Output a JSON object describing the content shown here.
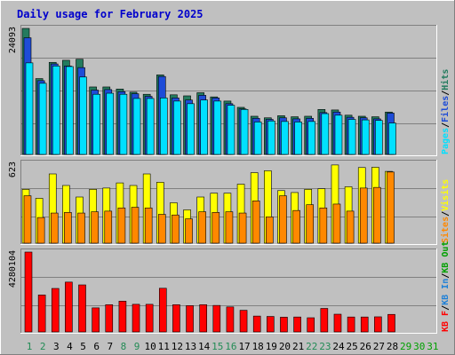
{
  "title": "Daily usage for February 2025",
  "colors": {
    "page_bg": "#c0c0c0",
    "title": "#0000cc",
    "hits": "#237b5e",
    "files": "#1e4cd7",
    "pages": "#00e0ff",
    "visits": "#ffff00",
    "sites": "#ff8800",
    "kb_f": "#ff0000",
    "kb_in": "#1e80d7",
    "kb_out": "#00a000",
    "weekend_label": "#228b55",
    "weekday_label": "#000000",
    "future_label": "#00a000"
  },
  "chart_data": [
    {
      "type": "bar",
      "panel": "top",
      "ytick_label": "24093",
      "ylim": [
        0,
        24093
      ],
      "grid": true,
      "categories": [
        "1",
        "2",
        "3",
        "4",
        "5",
        "6",
        "7",
        "8",
        "9",
        "10",
        "11",
        "12",
        "13",
        "14",
        "15",
        "16",
        "17",
        "18",
        "19",
        "20",
        "21",
        "22",
        "23",
        "24",
        "25",
        "26",
        "27",
        "28",
        "29",
        "30",
        "31"
      ],
      "legend": {
        "position": "right",
        "entries": [
          {
            "label": "Pages",
            "color_key": "pages"
          },
          {
            "label": "Files",
            "color_key": "files"
          },
          {
            "label": "Hits",
            "color_key": "hits"
          }
        ],
        "separator": "/"
      },
      "series": [
        {
          "name": "Hits",
          "color_key": "hits",
          "values": [
            24093,
            14500,
            17600,
            18000,
            18200,
            12900,
            12900,
            12500,
            11900,
            11500,
            15200,
            11400,
            11200,
            11800,
            11000,
            10200,
            9000,
            7300,
            7000,
            7400,
            7200,
            7300,
            8600,
            8500,
            7500,
            7300,
            7200,
            8100,
            0,
            0,
            0
          ]
        },
        {
          "name": "Files",
          "color_key": "files",
          "values": [
            22300,
            14100,
            17300,
            16900,
            16600,
            12300,
            12400,
            12000,
            11600,
            11100,
            14900,
            10800,
            10400,
            11300,
            10800,
            9700,
            8700,
            6900,
            6700,
            7000,
            6800,
            6900,
            8000,
            8100,
            7100,
            7000,
            6800,
            7900,
            0,
            0,
            0
          ]
        },
        {
          "name": "Pages",
          "color_key": "pages",
          "values": [
            17500,
            13600,
            16900,
            16800,
            14800,
            11500,
            11700,
            11500,
            10700,
            10700,
            10800,
            10200,
            9700,
            10400,
            10200,
            9400,
            8600,
            6200,
            6400,
            6300,
            6200,
            6300,
            7800,
            7500,
            6700,
            6600,
            6500,
            6000,
            0,
            0,
            0
          ]
        }
      ]
    },
    {
      "type": "bar",
      "panel": "middle",
      "ytick_label": "623",
      "ylim": [
        0,
        623
      ],
      "grid": true,
      "categories": [
        "1",
        "2",
        "3",
        "4",
        "5",
        "6",
        "7",
        "8",
        "9",
        "10",
        "11",
        "12",
        "13",
        "14",
        "15",
        "16",
        "17",
        "18",
        "19",
        "20",
        "21",
        "22",
        "23",
        "24",
        "25",
        "26",
        "27",
        "28",
        "29",
        "30",
        "31"
      ],
      "legend": {
        "position": "right",
        "entries": [
          {
            "label": "Sites",
            "color_key": "sites"
          },
          {
            "label": "Visits",
            "color_key": "visits"
          }
        ],
        "separator": "/"
      },
      "series": [
        {
          "name": "Visits",
          "color_key": "visits",
          "values": [
            420,
            350,
            540,
            450,
            360,
            420,
            430,
            470,
            450,
            540,
            475,
            315,
            260,
            360,
            390,
            390,
            460,
            550,
            565,
            410,
            395,
            420,
            425,
            610,
            440,
            590,
            592,
            560,
            0,
            0,
            0
          ]
        },
        {
          "name": "Sites",
          "color_key": "sites",
          "values": [
            370,
            200,
            235,
            240,
            235,
            245,
            250,
            275,
            280,
            275,
            225,
            220,
            190,
            245,
            240,
            245,
            235,
            330,
            205,
            370,
            255,
            300,
            275,
            305,
            250,
            430,
            435,
            555,
            0,
            0,
            0
          ]
        }
      ]
    },
    {
      "type": "bar",
      "panel": "bottom",
      "ytick_label": "4280104",
      "ylim": [
        0,
        4280104
      ],
      "grid": true,
      "categories": [
        "1",
        "2",
        "3",
        "4",
        "5",
        "6",
        "7",
        "8",
        "9",
        "10",
        "11",
        "12",
        "13",
        "14",
        "15",
        "16",
        "17",
        "18",
        "19",
        "20",
        "21",
        "22",
        "23",
        "24",
        "25",
        "26",
        "27",
        "28",
        "29",
        "30",
        "31"
      ],
      "legend": {
        "position": "right",
        "entries": [
          {
            "label": "KB F",
            "color_key": "kb_f"
          },
          {
            "label": "KB In",
            "color_key": "kb_in"
          },
          {
            "label": "KB Out",
            "color_key": "kb_out"
          }
        ],
        "separator": "/"
      },
      "series": [
        {
          "name": "KB F",
          "color_key": "kb_f",
          "values": [
            4280104,
            1980000,
            2330000,
            2670000,
            2520000,
            1290000,
            1460000,
            1650000,
            1480000,
            1480000,
            2340000,
            1460000,
            1410000,
            1460000,
            1420000,
            1340000,
            1160000,
            850000,
            830000,
            790000,
            800000,
            760000,
            1260000,
            950000,
            800000,
            800000,
            810000,
            940000,
            0,
            0,
            0
          ]
        }
      ]
    }
  ],
  "x_labels": [
    "1",
    "2",
    "3",
    "4",
    "5",
    "6",
    "7",
    "8",
    "9",
    "10",
    "11",
    "12",
    "13",
    "14",
    "15",
    "16",
    "17",
    "18",
    "19",
    "20",
    "21",
    "22",
    "23",
    "24",
    "25",
    "26",
    "27",
    "28",
    "29",
    "30",
    "31"
  ],
  "weekend_days": [
    "1",
    "2",
    "8",
    "9",
    "15",
    "16",
    "22",
    "23"
  ],
  "future_days": [
    "29",
    "30",
    "31"
  ]
}
